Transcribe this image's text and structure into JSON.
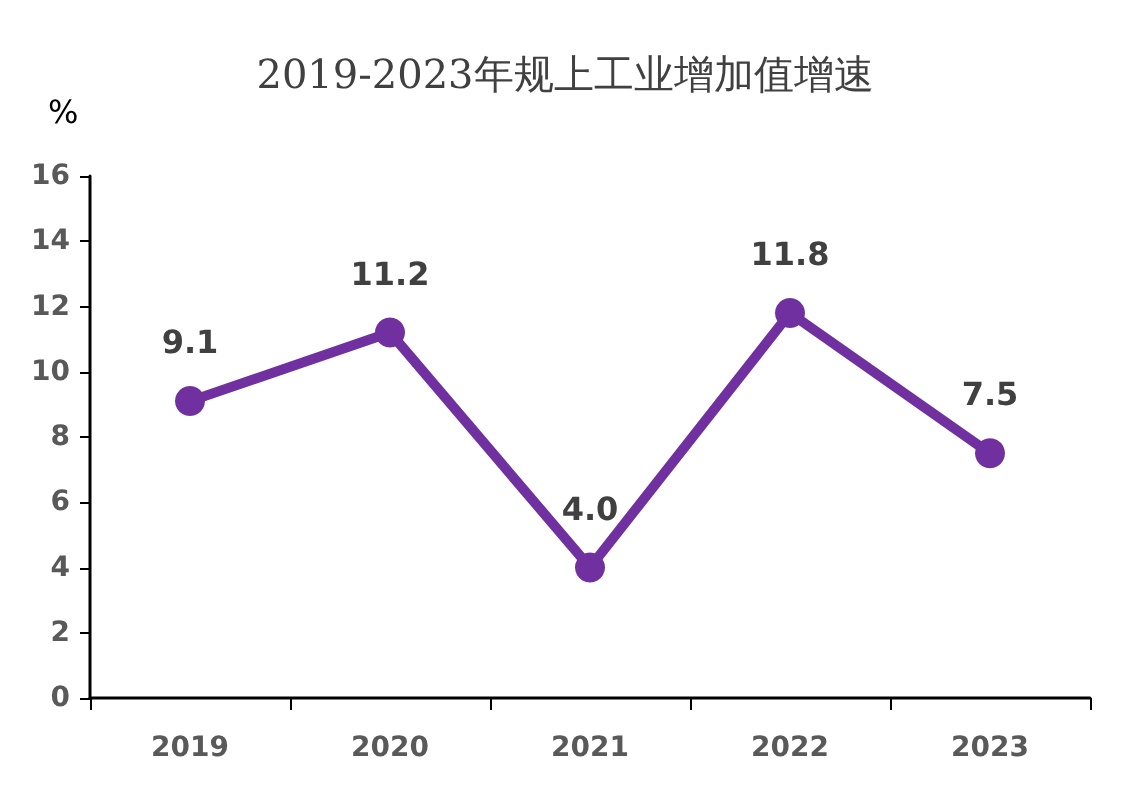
{
  "chart_data": {
    "type": "line",
    "title": "2019-2023年规上工业增加值增速",
    "ylabel": "%",
    "categories": [
      "2019",
      "2020",
      "2021",
      "2022",
      "2023"
    ],
    "series": [
      {
        "color": "#7030a0",
        "values": [
          9.1,
          11.2,
          4.0,
          11.8,
          7.5
        ],
        "value_labels": [
          "9.1",
          "11.2",
          "4.0",
          "11.8",
          "7.5"
        ]
      }
    ],
    "ylim": [
      0,
      16
    ],
    "yticks": [
      0,
      2,
      4,
      6,
      8,
      10,
      12,
      14,
      16
    ],
    "grid": false,
    "marker": "circle",
    "line_style": "solid"
  }
}
